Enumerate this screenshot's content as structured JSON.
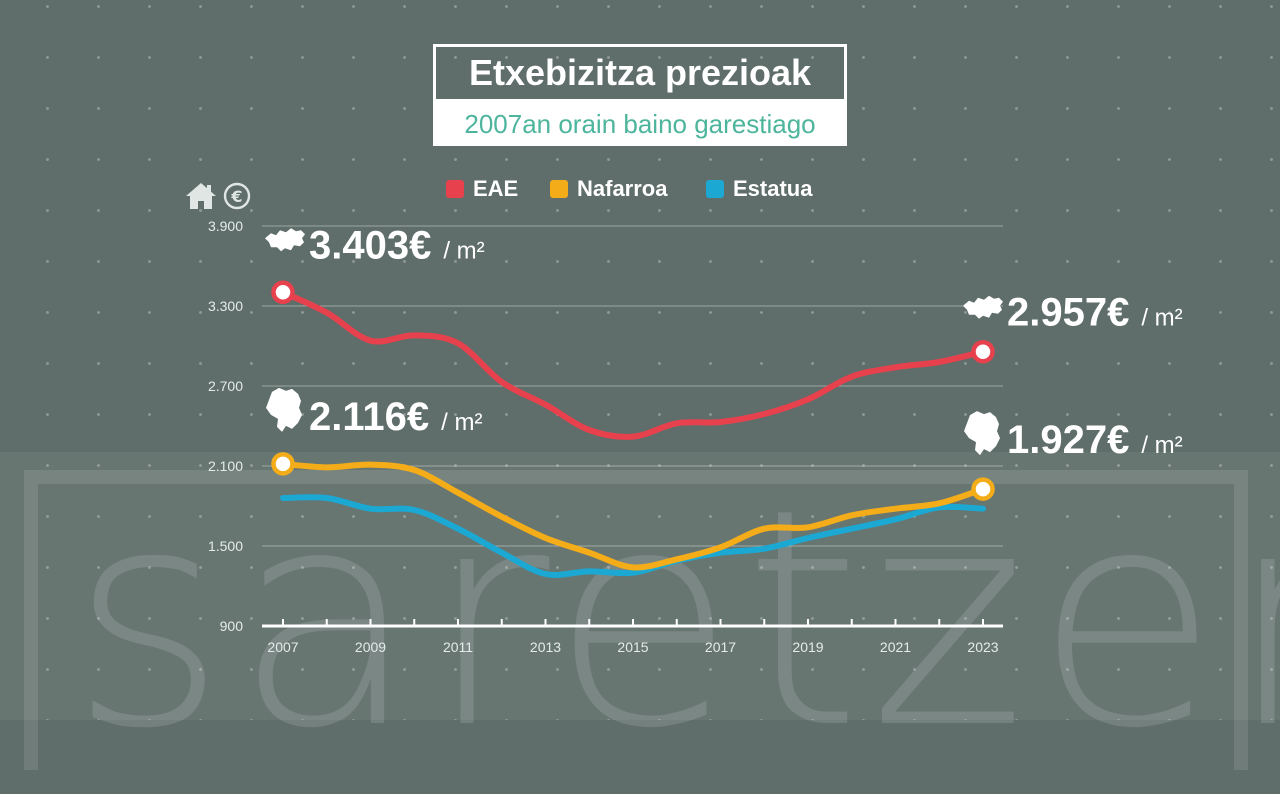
{
  "watermark": "saretzen",
  "title": "Etxebizitza prezioak",
  "subtitle": "2007an orain baino garestiago",
  "colors": {
    "background": "#5f6e6a",
    "title_text": "#ffffff",
    "subtitle_text": "#4db59c",
    "eae": "#e8414e",
    "nafarroa": "#f4ad18",
    "estatua": "#1ba9d4"
  },
  "legend": [
    {
      "label": "EAE",
      "color": "#e8414e"
    },
    {
      "label": "Nafarroa",
      "color": "#f4ad18"
    },
    {
      "label": "Estatua",
      "color": "#1ba9d4"
    }
  ],
  "unit_icons": [
    "house-icon",
    "euro-icon"
  ],
  "chart_data": {
    "type": "line",
    "title": "Etxebizitza prezioak",
    "subtitle": "2007an orain baino garestiago",
    "xlabel": "",
    "ylabel": "",
    "x": [
      2007,
      2008,
      2009,
      2010,
      2011,
      2012,
      2013,
      2014,
      2015,
      2016,
      2017,
      2018,
      2019,
      2020,
      2021,
      2022,
      2023
    ],
    "x_tick_labels": [
      "2007",
      "2009",
      "2011",
      "2013",
      "2015",
      "2017",
      "2019",
      "2021",
      "2023"
    ],
    "y_tick_labels": [
      "3.900",
      "3.300",
      "2.700",
      "2.100",
      "1.500",
      "900"
    ],
    "y_ticks": [
      3900,
      3300,
      2700,
      2100,
      1500,
      900
    ],
    "ylim": [
      900,
      3900
    ],
    "grid": "horizontal",
    "legend_position": "top",
    "series": [
      {
        "name": "EAE",
        "color": "#e8414e",
        "values": [
          3403,
          3250,
          3040,
          3080,
          3020,
          2730,
          2560,
          2370,
          2320,
          2420,
          2430,
          2490,
          2600,
          2770,
          2840,
          2880,
          2957
        ]
      },
      {
        "name": "Nafarroa",
        "color": "#f4ad18",
        "values": [
          2116,
          2090,
          2110,
          2070,
          1900,
          1720,
          1560,
          1450,
          1340,
          1400,
          1490,
          1630,
          1640,
          1730,
          1780,
          1820,
          1927
        ]
      },
      {
        "name": "Estatua",
        "color": "#1ba9d4",
        "values": [
          1860,
          1860,
          1780,
          1770,
          1630,
          1450,
          1290,
          1310,
          1300,
          1390,
          1450,
          1480,
          1560,
          1630,
          1700,
          1790,
          1780
        ]
      }
    ],
    "annotations": [
      {
        "series": "EAE",
        "x": 2007,
        "value": "3.403€",
        "unit": "/ m²",
        "icon": "basque-country-map-icon"
      },
      {
        "series": "EAE",
        "x": 2023,
        "value": "2.957€",
        "unit": "/ m²",
        "icon": "basque-country-map-icon"
      },
      {
        "series": "Nafarroa",
        "x": 2007,
        "value": "2.116€",
        "unit": "/ m²",
        "icon": "navarre-map-icon"
      },
      {
        "series": "Nafarroa",
        "x": 2023,
        "value": "1.927€",
        "unit": "/ m²",
        "icon": "navarre-map-icon"
      }
    ]
  }
}
